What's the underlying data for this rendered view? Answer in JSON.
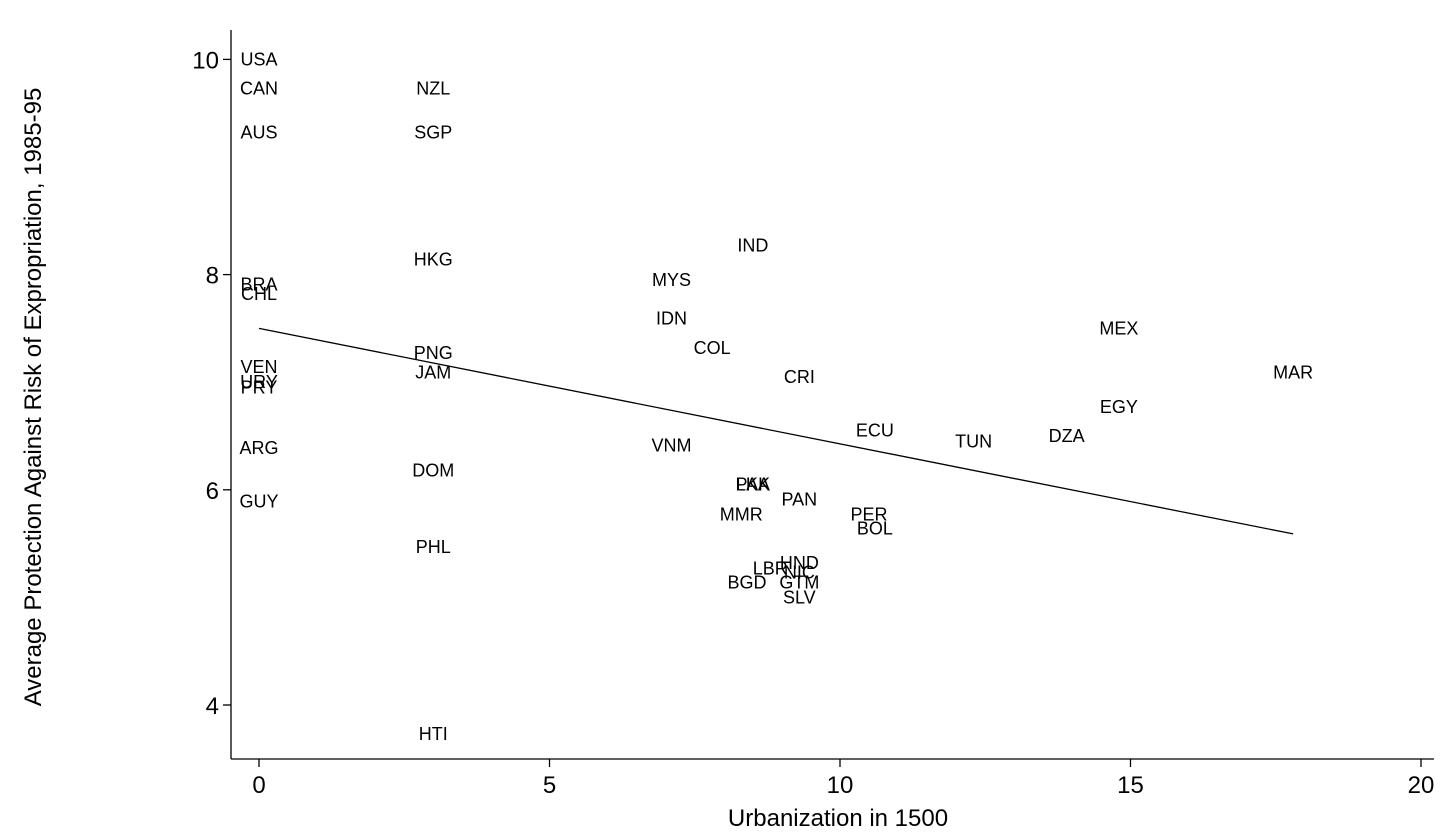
{
  "chart_data": {
    "type": "scatter",
    "title": "",
    "xlabel": "Urbanization in 1500",
    "ylabel": "Average Protection Against Risk of Expropriation, 1985-95",
    "xlim": [
      -0.5,
      20.5
    ],
    "ylim": [
      3.5,
      10.3
    ],
    "xticks": [
      0,
      5,
      10,
      15,
      20
    ],
    "yticks": [
      4,
      6,
      8,
      10
    ],
    "grid": false,
    "legend": "none",
    "points": [
      {
        "label": "USA",
        "x": 0,
        "y": 10.0
      },
      {
        "label": "CAN",
        "x": 0,
        "y": 9.73
      },
      {
        "label": "AUS",
        "x": 0,
        "y": 9.32
      },
      {
        "label": "NZL",
        "x": 3,
        "y": 9.73
      },
      {
        "label": "SGP",
        "x": 3,
        "y": 9.32
      },
      {
        "label": "HKG",
        "x": 3,
        "y": 8.14
      },
      {
        "label": "BRA",
        "x": 0,
        "y": 7.91
      },
      {
        "label": "CHL",
        "x": 0,
        "y": 7.82
      },
      {
        "label": "PNG",
        "x": 3,
        "y": 7.27
      },
      {
        "label": "JAM",
        "x": 3,
        "y": 7.09
      },
      {
        "label": "VEN",
        "x": 0,
        "y": 7.14
      },
      {
        "label": "URY",
        "x": 0,
        "y": 7.0
      },
      {
        "label": "PRY",
        "x": 0,
        "y": 6.95
      },
      {
        "label": "ARG",
        "x": 0,
        "y": 6.39
      },
      {
        "label": "DOM",
        "x": 3,
        "y": 6.18
      },
      {
        "label": "GUY",
        "x": 0,
        "y": 5.89
      },
      {
        "label": "PHL",
        "x": 3,
        "y": 5.47
      },
      {
        "label": "HTI",
        "x": 3,
        "y": 3.73
      },
      {
        "label": "IND",
        "x": 8.5,
        "y": 8.27
      },
      {
        "label": "MYS",
        "x": 7.1,
        "y": 7.95
      },
      {
        "label": "IDN",
        "x": 7.1,
        "y": 7.59
      },
      {
        "label": "COL",
        "x": 7.8,
        "y": 7.32
      },
      {
        "label": "CRI",
        "x": 9.3,
        "y": 7.05
      },
      {
        "label": "VNM",
        "x": 7.1,
        "y": 6.41
      },
      {
        "label": "PAK",
        "x": 8.5,
        "y": 6.05
      },
      {
        "label": "LKA",
        "x": 8.5,
        "y": 6.05
      },
      {
        "label": "PAN",
        "x": 9.3,
        "y": 5.91
      },
      {
        "label": "MMR",
        "x": 8.3,
        "y": 5.77
      },
      {
        "label": "PER",
        "x": 10.5,
        "y": 5.77
      },
      {
        "label": "BOL",
        "x": 10.6,
        "y": 5.64
      },
      {
        "label": "HND",
        "x": 9.3,
        "y": 5.32
      },
      {
        "label": "LBR",
        "x": 8.8,
        "y": 5.27
      },
      {
        "label": "NIC",
        "x": 9.3,
        "y": 5.23
      },
      {
        "label": "BGD",
        "x": 8.4,
        "y": 5.14
      },
      {
        "label": "GTM",
        "x": 9.3,
        "y": 5.14
      },
      {
        "label": "SLV",
        "x": 9.3,
        "y": 5.0
      },
      {
        "label": "ECU",
        "x": 10.6,
        "y": 6.55
      },
      {
        "label": "TUN",
        "x": 12.3,
        "y": 6.45
      },
      {
        "label": "DZA",
        "x": 13.9,
        "y": 6.5
      },
      {
        "label": "EGY",
        "x": 14.8,
        "y": 6.77
      },
      {
        "label": "MEX",
        "x": 14.8,
        "y": 7.5
      },
      {
        "label": "MAR",
        "x": 17.8,
        "y": 7.09
      }
    ],
    "fit_line": {
      "x": [
        0,
        17.8
      ],
      "y": [
        7.5,
        5.59
      ]
    }
  }
}
